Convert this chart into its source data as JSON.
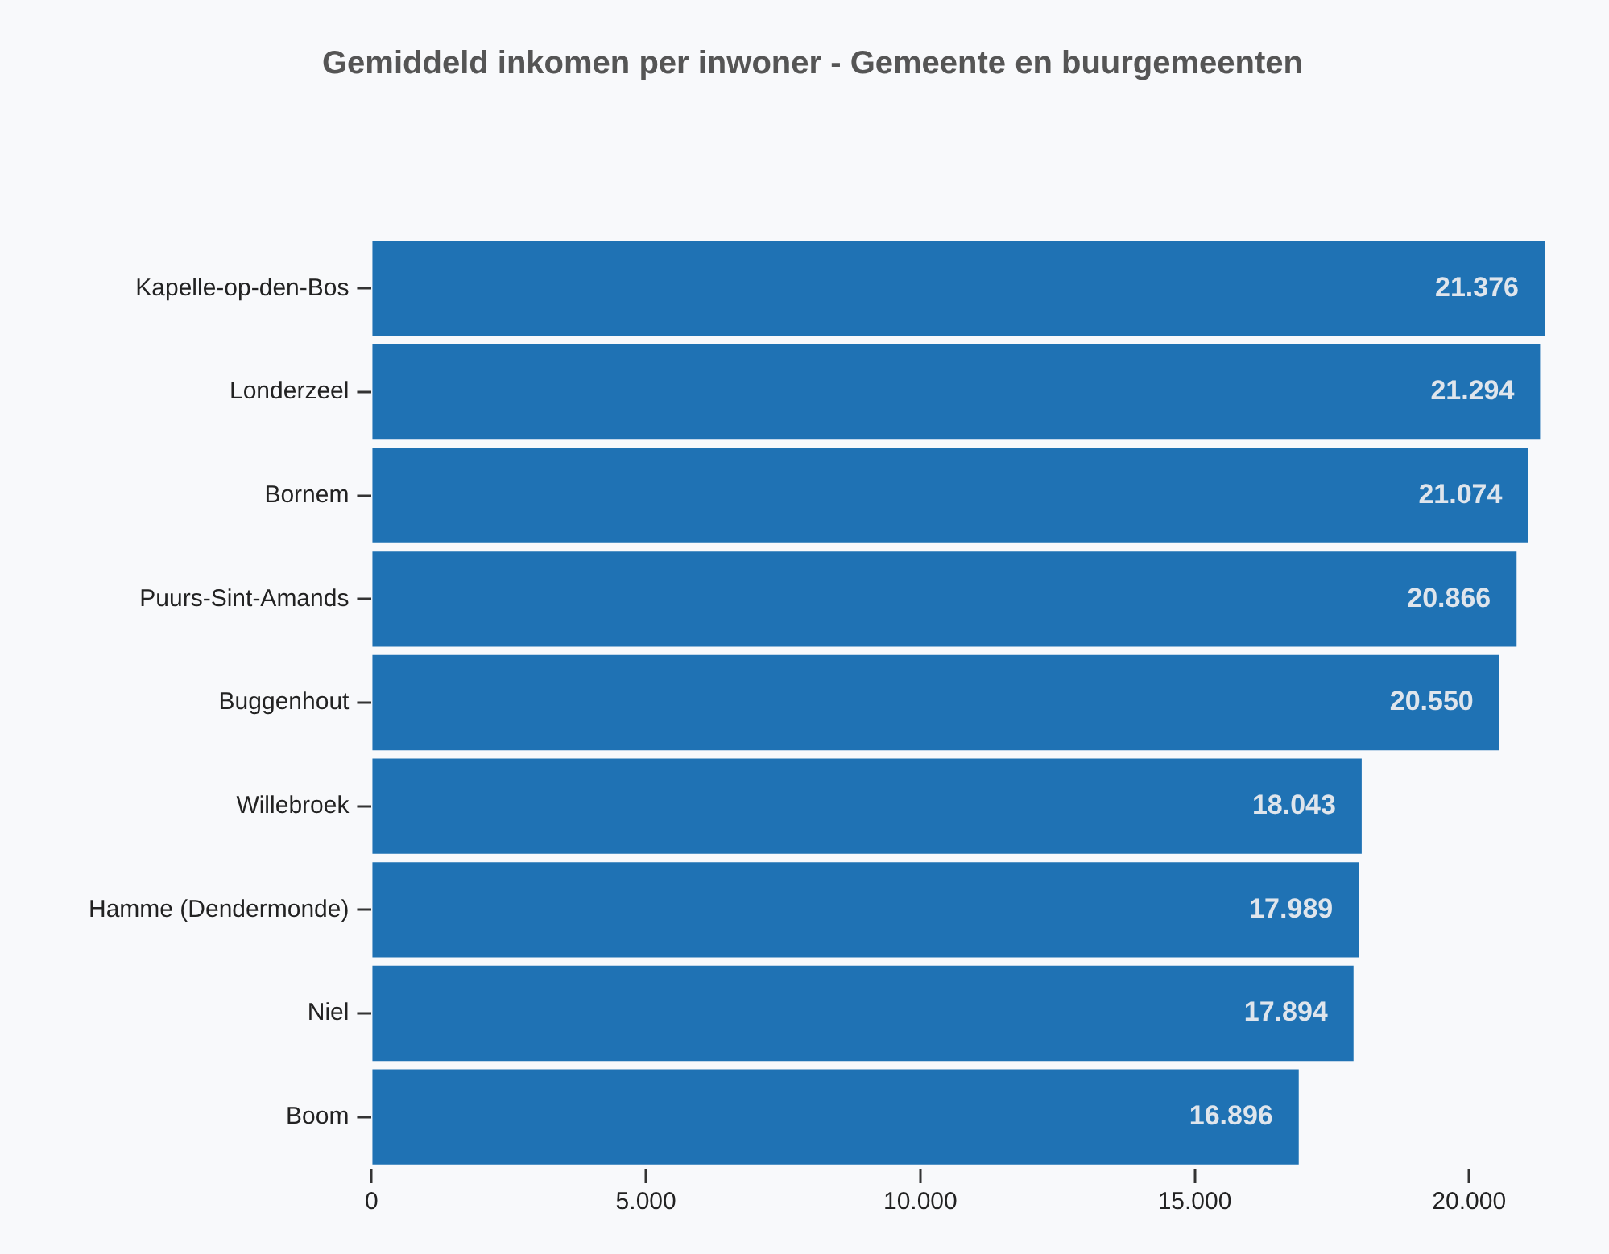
{
  "chart_data": {
    "type": "bar",
    "orientation": "horizontal",
    "title": "Gemiddeld inkomen per inwoner - Gemeente en buurgemeenten",
    "categories": [
      "Kapelle-op-den-Bos",
      "Londerzeel",
      "Bornem",
      "Puurs-Sint-Amands",
      "Buggenhout",
      "Willebroek",
      "Hamme (Dendermonde)",
      "Niel",
      "Boom"
    ],
    "values": [
      21376,
      21294,
      21074,
      20866,
      20550,
      18043,
      17989,
      17894,
      16896
    ],
    "value_labels": [
      "21.376",
      "21.294",
      "21.074",
      "20.866",
      "20.550",
      "18.043",
      "17.989",
      "17.894",
      "16.896"
    ],
    "color": "#1f72b4",
    "xlim": [
      0,
      21376
    ],
    "xticks": [
      {
        "value": 0,
        "label": "0"
      },
      {
        "value": 5000,
        "label": "5.000"
      },
      {
        "value": 10000,
        "label": "10.000"
      },
      {
        "value": 15000,
        "label": "15.000"
      },
      {
        "value": 20000,
        "label": "20.000"
      }
    ],
    "grid": false,
    "legend": false
  }
}
